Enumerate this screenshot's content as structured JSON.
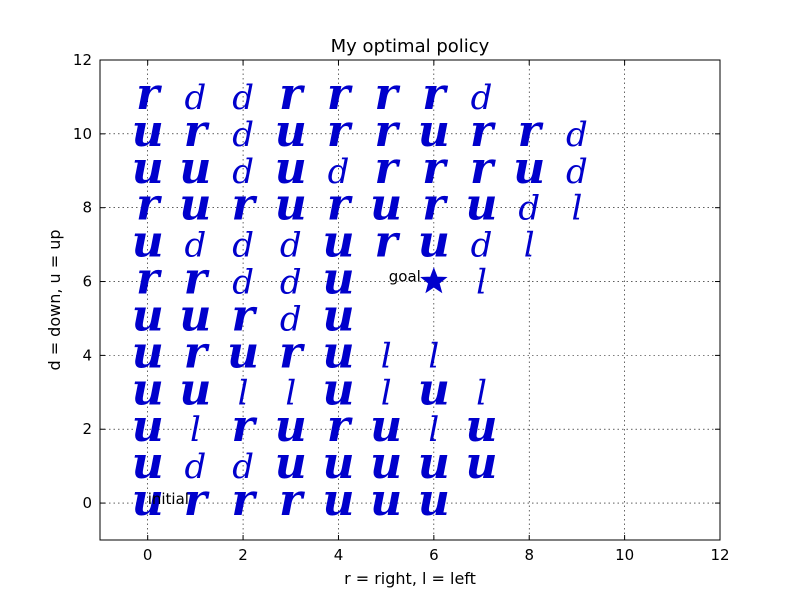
{
  "chart_data": {
    "type": "scatter",
    "title": "My optimal policy",
    "xlabel": "r = right, l = left",
    "ylabel": "d = down, u = up",
    "xlim": [
      -1,
      12
    ],
    "ylim": [
      -1,
      12
    ],
    "xticks": [
      0,
      2,
      4,
      6,
      8,
      10,
      12
    ],
    "yticks": [
      0,
      2,
      4,
      6,
      8,
      10,
      12
    ],
    "grid": true,
    "grid_style": "dotted",
    "marker_color": "#0000cc",
    "policy_rows": [
      {
        "y": 11,
        "actions": [
          "r",
          "d",
          "d",
          "r",
          "r",
          "r",
          "r",
          "d",
          "",
          ""
        ]
      },
      {
        "y": 10,
        "actions": [
          "u",
          "r",
          "d",
          "u",
          "r",
          "r",
          "u",
          "r",
          "r",
          "d"
        ]
      },
      {
        "y": 9,
        "actions": [
          "u",
          "u",
          "d",
          "u",
          "d",
          "r",
          "r",
          "r",
          "u",
          "d"
        ]
      },
      {
        "y": 8,
        "actions": [
          "r",
          "u",
          "r",
          "u",
          "r",
          "u",
          "r",
          "u",
          "d",
          "l"
        ]
      },
      {
        "y": 7,
        "actions": [
          "u",
          "d",
          "d",
          "d",
          "u",
          "r",
          "u",
          "d",
          "l",
          ""
        ]
      },
      {
        "y": 6,
        "actions": [
          "r",
          "r",
          "d",
          "d",
          "u",
          "",
          "",
          "l",
          "",
          ""
        ]
      },
      {
        "y": 5,
        "actions": [
          "u",
          "u",
          "r",
          "d",
          "u",
          "",
          "",
          "",
          "",
          ""
        ]
      },
      {
        "y": 4,
        "actions": [
          "u",
          "r",
          "u",
          "r",
          "u",
          "l",
          "l",
          "",
          "",
          ""
        ]
      },
      {
        "y": 3,
        "actions": [
          "u",
          "u",
          "l",
          "l",
          "u",
          "l",
          "u",
          "l",
          "",
          ""
        ]
      },
      {
        "y": 2,
        "actions": [
          "u",
          "l",
          "r",
          "u",
          "r",
          "u",
          "l",
          "u",
          "",
          ""
        ]
      },
      {
        "y": 1,
        "actions": [
          "u",
          "d",
          "d",
          "u",
          "u",
          "u",
          "u",
          "u",
          "",
          ""
        ]
      },
      {
        "y": 0,
        "actions": [
          "u",
          "r",
          "r",
          "r",
          "u",
          "u",
          "u",
          "",
          "",
          ""
        ]
      }
    ],
    "goal": {
      "x": 6,
      "y": 6,
      "label": "goal",
      "marker": "star"
    },
    "initial": {
      "x": 0,
      "y": 0,
      "label": "initial"
    }
  }
}
